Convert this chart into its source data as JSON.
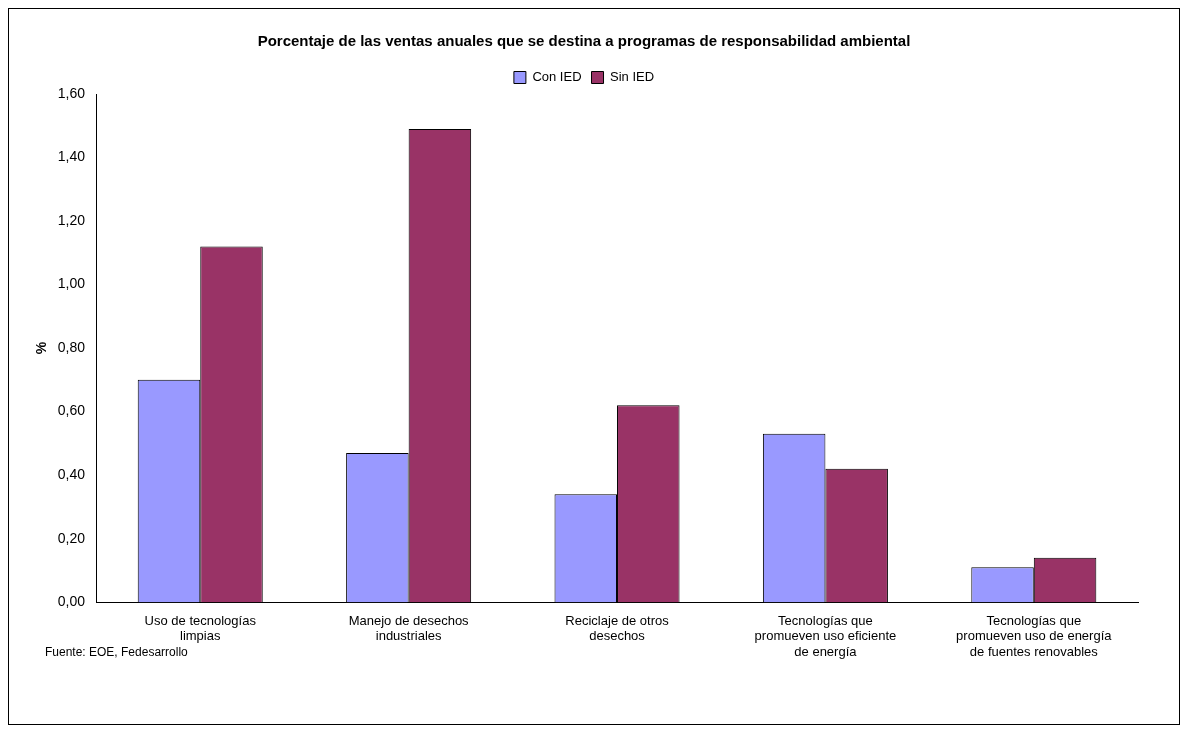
{
  "chart_data": {
    "type": "bar",
    "title": "Porcentaje de las ventas anuales que se destina a programas de responsabilidad ambiental",
    "ylabel": "%",
    "categories": [
      "Uso de tecnologías limpias",
      "Manejo de desechos industriales",
      "Reciclaje de otros desechos",
      "Tecnologías que promueven uso eficiente de energía",
      "Tecnologías que promueven uso de energía de fuentes renovables"
    ],
    "series": [
      {
        "name": "Con IED",
        "color": "#9999ff",
        "values": [
          0.7,
          0.47,
          0.34,
          0.53,
          0.11
        ]
      },
      {
        "name": "Sin IED",
        "color": "#993366",
        "values": [
          1.12,
          1.49,
          0.62,
          0.42,
          0.14
        ]
      }
    ],
    "ylim": [
      0,
      1.6
    ],
    "yticks": [
      {
        "value": 0,
        "label": "0,00"
      },
      {
        "value": 0.2,
        "label": "0,20"
      },
      {
        "value": 0.4,
        "label": "0,40"
      },
      {
        "value": 0.6,
        "label": "0,60"
      },
      {
        "value": 0.8,
        "label": "0,80"
      },
      {
        "value": 1,
        "label": "1,00"
      },
      {
        "value": 1.2,
        "label": "1,20"
      },
      {
        "value": 1.4,
        "label": "1,40"
      },
      {
        "value": 1.6,
        "label": "1,60"
      }
    ],
    "grid": false,
    "legend": "top",
    "annotations": [
      "Fuente: EOE, Fedesarrollo"
    ]
  }
}
